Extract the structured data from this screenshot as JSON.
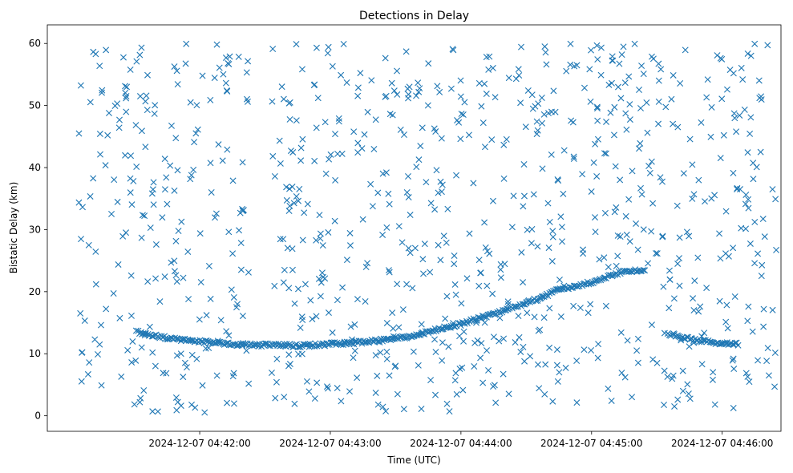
{
  "chart_data": {
    "type": "scatter",
    "title": "Detections in Delay",
    "xlabel": "Time (UTC)",
    "ylabel": "Bistatic Delay (km)",
    "marker": "x",
    "color": "#1f77b4",
    "xlim": [
      "2024-12-07 04:40:50",
      "2024-12-07 04:46:27"
    ],
    "ylim": [
      -2.5,
      63
    ],
    "x_ticks": [
      "2024-12-07 04:42:00",
      "2024-12-07 04:43:00",
      "2024-12-07 04:44:00",
      "2024-12-07 04:45:00",
      "2024-12-07 04:46:00"
    ],
    "y_ticks": [
      0,
      10,
      20,
      30,
      40,
      50,
      60
    ],
    "grid": false,
    "track": {
      "description_points": [
        [
          "2024-12-07 04:41:31",
          13.5
        ],
        [
          "2024-12-07 04:41:45",
          12.5
        ],
        [
          "2024-12-07 04:42:00",
          12.0
        ],
        [
          "2024-12-07 04:42:15",
          11.5
        ],
        [
          "2024-12-07 04:42:47",
          11.3
        ],
        [
          "2024-12-07 04:43:12",
          11.8
        ],
        [
          "2024-12-07 04:43:35",
          12.7
        ],
        [
          "2024-12-07 04:44:00",
          14.8
        ],
        [
          "2024-12-07 04:44:20",
          17.0
        ],
        [
          "2024-12-07 04:44:35",
          18.8
        ],
        [
          "2024-12-07 04:44:45",
          20.3
        ],
        [
          "2024-12-07 04:45:00",
          21.5
        ],
        [
          "2024-12-07 04:45:15",
          23.4
        ],
        [
          "2024-12-07 04:45:25",
          23.5
        ],
        [
          "2024-12-07 04:45:35",
          13.2
        ],
        [
          "2024-12-07 04:45:50",
          12.0
        ],
        [
          "2024-12-07 04:46:08",
          11.5
        ]
      ]
    },
    "noise_count": 900
  }
}
